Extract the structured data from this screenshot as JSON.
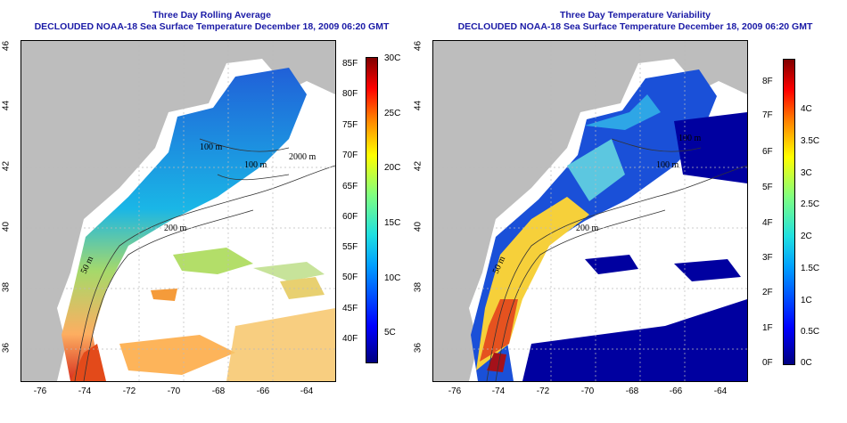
{
  "left_panel": {
    "title_line1": "Three Day Rolling Average",
    "title_line2": "DECLOUDED NOAA-18 Sea Surface Temperature December 18, 2009 06:20 GMT",
    "fahrenheit_labels": [
      "85F",
      "80F",
      "75F",
      "70F",
      "65F",
      "60F",
      "55F",
      "50F",
      "45F",
      "40F"
    ],
    "celsius_labels": [
      "30C",
      "25C",
      "20C",
      "15C",
      "10C",
      "5C"
    ],
    "contour_labels": [
      "100 m",
      "100 m",
      "2000 m",
      "200 m",
      "50 m"
    ]
  },
  "right_panel": {
    "title_line1": "Three Day Temperature Variability",
    "title_line2": "DECLOUDED NOAA-18 Sea Surface Temperature December 18, 2009 06:20 GMT",
    "fahrenheit_labels": [
      "8F",
      "7F",
      "6F",
      "5F",
      "4F",
      "3F",
      "2F",
      "1F",
      "0F"
    ],
    "celsius_labels": [
      "4C",
      "3.5C",
      "3C",
      "2.5C",
      "2C",
      "1.5C",
      "1C",
      "0.5C",
      "0C"
    ],
    "contour_labels": [
      "100 m",
      "100 m",
      "200 m",
      "50 m"
    ]
  },
  "axes": {
    "lat_ticks": [
      "46",
      "44",
      "42",
      "40",
      "38",
      "36"
    ],
    "lon_ticks": [
      "-76",
      "-74",
      "-72",
      "-70",
      "-68",
      "-66",
      "-64"
    ]
  },
  "colors": {
    "title": "#1a1aa6",
    "land": "#bdbdbd",
    "ocean_nodata": "#ffffff"
  }
}
